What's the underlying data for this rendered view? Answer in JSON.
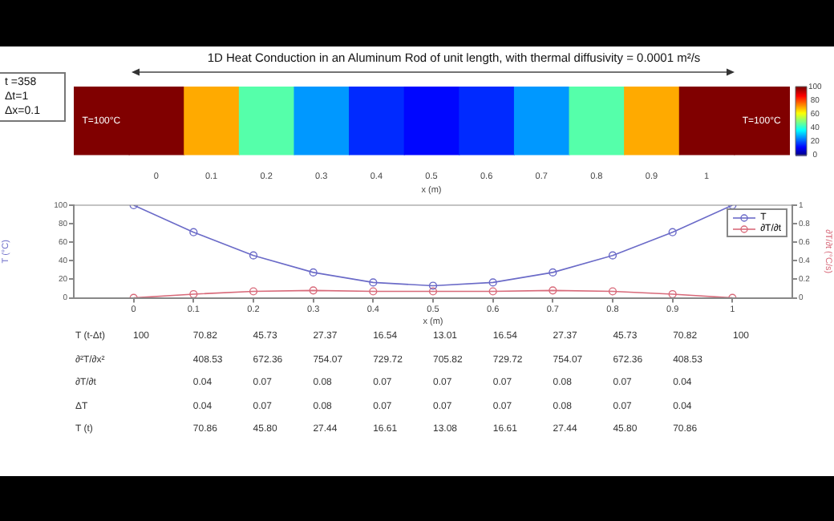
{
  "chart_data": [
    {
      "type": "heatmap",
      "title": "1D Heat Conduction in an Aluminum Rod of unit length, with thermal diffusivity = 0.0001 m²/s",
      "xlabel": "x (m)",
      "categories": [
        null,
        "0",
        "0.1",
        "0.2",
        "0.3",
        "0.4",
        "0.5",
        "0.6",
        "0.7",
        "0.8",
        "0.9",
        "1",
        null
      ],
      "y_categories": [
        null
      ],
      "cells": [
        [
          100,
          100,
          70.86,
          45.8,
          27.44,
          16.61,
          13.08,
          16.61,
          27.44,
          45.8,
          70.86,
          100,
          100
        ]
      ],
      "clim": [
        0,
        100
      ],
      "cticks": [
        0,
        20,
        40,
        60,
        80,
        100
      ],
      "annotations": [
        "T=100°C",
        "T=100°C",
        "t =358",
        "Δt=1",
        "Δx=0.1"
      ]
    },
    {
      "type": "line",
      "xlabel": "x (m)",
      "ylabel": "T (°C)",
      "y2label": "∂T/∂t (°C/s)",
      "x": [
        0,
        0.1,
        0.2,
        0.3,
        0.4,
        0.5,
        0.6,
        0.7,
        0.8,
        0.9,
        1
      ],
      "xlim": [
        -0.1,
        1.1
      ],
      "xticks": [
        0,
        0.1,
        0.2,
        0.3,
        0.4,
        0.5,
        0.6,
        0.7,
        0.8,
        0.9,
        1
      ],
      "ylim": [
        0,
        100
      ],
      "yticks": [
        0,
        20,
        40,
        60,
        80,
        100
      ],
      "y2lim": [
        0,
        1
      ],
      "y2ticks": [
        0,
        0.2,
        0.4,
        0.6,
        0.8,
        1
      ],
      "series": [
        {
          "name": "T",
          "color": "#6b6bc8",
          "values": [
            100,
            70.86,
            45.8,
            27.44,
            16.61,
            13.08,
            16.61,
            27.44,
            45.8,
            70.86,
            100
          ]
        },
        {
          "name": "∂T/∂t",
          "color": "#d86a7a",
          "axis": "y2",
          "values": [
            0,
            0.04,
            0.07,
            0.08,
            0.07,
            0.07,
            0.07,
            0.08,
            0.07,
            0.04,
            0
          ]
        }
      ],
      "marker": "circle",
      "legend": "top right",
      "grid": false
    },
    {
      "type": "other",
      "y_categories": [
        "T (t-Δt)",
        "∂²T/∂x²",
        "∂T/∂t",
        "ΔT",
        "T (t)"
      ],
      "cell_labels": [
        [
          "100",
          "70.82",
          "45.73",
          "27.37",
          "16.54",
          "13.01",
          "16.54",
          "27.37",
          "45.73",
          "70.82",
          "100"
        ],
        [
          null,
          "408.53",
          "672.36",
          "754.07",
          "729.72",
          "705.82",
          "729.72",
          "754.07",
          "672.36",
          "408.53",
          null
        ],
        [
          null,
          "0.04",
          "0.07",
          "0.08",
          "0.07",
          "0.07",
          "0.07",
          "0.08",
          "0.07",
          "0.04",
          null
        ],
        [
          null,
          "0.04",
          "0.07",
          "0.08",
          "0.07",
          "0.07",
          "0.07",
          "0.08",
          "0.07",
          "0.04",
          null
        ],
        [
          null,
          "70.86",
          "45.80",
          "27.44",
          "16.61",
          "13.08",
          "16.61",
          "27.44",
          "45.80",
          "70.86",
          null
        ]
      ]
    }
  ]
}
